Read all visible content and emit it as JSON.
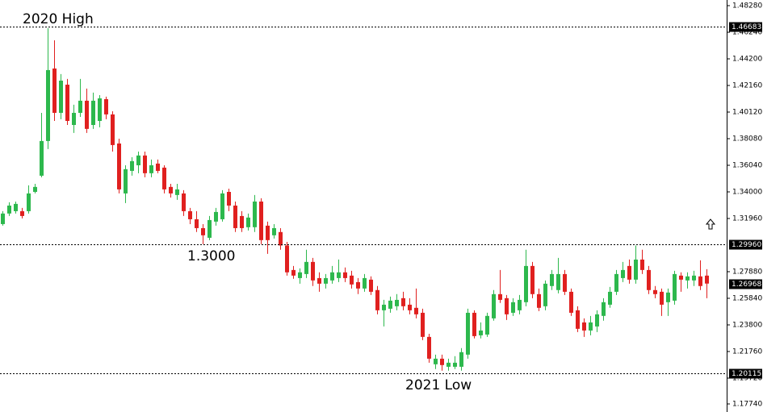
{
  "chart_data": {
    "type": "candlestick",
    "up_color": "#2db84d",
    "down_color": "#e0201f",
    "ylim": [
      1.1774,
      1.4828
    ],
    "yticks": [
      {
        "value": 1.4828,
        "label": "1.48280"
      },
      {
        "value": 1.4624,
        "label": "1.46240"
      },
      {
        "value": 1.442,
        "label": "1.44200"
      },
      {
        "value": 1.4216,
        "label": "1.42160"
      },
      {
        "value": 1.4012,
        "label": "1.40120"
      },
      {
        "value": 1.3808,
        "label": "1.38080"
      },
      {
        "value": 1.3604,
        "label": "1.36040"
      },
      {
        "value": 1.34,
        "label": "1.34000"
      },
      {
        "value": 1.3196,
        "label": "1.31960"
      },
      {
        "value": 1.2788,
        "label": "1.27880"
      },
      {
        "value": 1.2584,
        "label": "1.25840"
      },
      {
        "value": 1.238,
        "label": "1.23800"
      },
      {
        "value": 1.2176,
        "label": "1.21760"
      },
      {
        "value": 1.1972,
        "label": "1.19720"
      },
      {
        "value": 1.1774,
        "label": "1.17740"
      }
    ],
    "levels": [
      {
        "value": 1.46683,
        "label": "1.46683",
        "dashed": true
      },
      {
        "value": 1.2996,
        "label": "1.29960",
        "dashed": true
      },
      {
        "value": 1.26968,
        "label": "1.26968",
        "dashed": false
      },
      {
        "value": 1.20115,
        "label": "1.20115",
        "dashed": true
      }
    ],
    "annotations": [
      "2020 High",
      "1.3000",
      "2021 Low"
    ],
    "open": [
      1.3153,
      1.3234,
      1.3252,
      1.3252,
      1.3252,
      1.34,
      1.3524,
      1.379,
      1.4346,
      1.4006,
      1.4222,
      1.3913,
      1.4006,
      1.4099,
      1.3913,
      1.3944,
      1.4111,
      1.3994,
      1.3771,
      1.3388,
      1.3561,
      1.3604,
      1.3679,
      1.3543,
      1.3617,
      1.3586,
      1.3438,
      1.3376,
      1.3388,
      1.3252,
      1.319,
      1.3122,
      1.3048,
      1.3172,
      1.319,
      1.34,
      1.3295,
      1.3215,
      1.3129,
      1.3129,
      1.3326,
      1.3141,
      1.3067,
      1.3092,
      1.2989,
      1.2801,
      1.2739,
      1.277,
      1.2863,
      1.2739,
      1.2696,
      1.2721,
      1.2739,
      1.2783,
      1.2758,
      1.2708,
      1.2659,
      1.2727,
      1.2647,
      1.2492,
      1.2504,
      1.2523,
      1.2585,
      1.2535,
      1.2511,
      1.2473,
      1.2288,
      1.2078,
      1.2121,
      1.2059,
      1.2059,
      1.2059,
      1.2152,
      1.2473,
      1.23,
      1.2306,
      1.243,
      1.2616,
      1.2585,
      1.2473,
      1.2492,
      1.2554,
      1.2832,
      1.2616,
      1.2523,
      1.2678,
      1.2647,
      1.277,
      1.2634,
      1.2492,
      1.2399,
      1.2337,
      1.2368,
      1.2449,
      1.2535,
      1.2634,
      1.2739,
      1.2832,
      1.2727,
      1.2881,
      1.2801,
      1.2647,
      1.2634,
      1.2554,
      1.2566,
      1.2758,
      1.2721,
      1.2721,
      1.2752,
      1.2758
    ],
    "high": [
      1.3252,
      1.332,
      1.3326,
      1.3277,
      1.345,
      1.3462,
      1.4006,
      1.4655,
      1.4562,
      1.4303,
      1.4266,
      1.4068,
      1.4266,
      1.4192,
      1.4161,
      1.4142,
      1.413,
      1.4018,
      1.3808,
      1.3604,
      1.3666,
      1.3709,
      1.3709,
      1.3648,
      1.3648,
      1.3604,
      1.3462,
      1.3462,
      1.3413,
      1.3277,
      1.3252,
      1.3153,
      1.3215,
      1.3277,
      1.3413,
      1.3425,
      1.3326,
      1.3252,
      1.3234,
      1.3376,
      1.3351,
      1.3172,
      1.3153,
      1.3122,
      1.3017,
      1.2832,
      1.2813,
      1.2956,
      1.2894,
      1.2783,
      1.277,
      1.2832,
      1.2881,
      1.282,
      1.2795,
      1.2739,
      1.277,
      1.2752,
      1.2678,
      1.2572,
      1.2597,
      1.2616,
      1.2634,
      1.2585,
      1.2659,
      1.2504,
      1.2312,
      1.2152,
      1.2152,
      1.2121,
      1.214,
      1.2202,
      1.2504,
      1.2492,
      1.2399,
      1.2473,
      1.2647,
      1.2801,
      1.2609,
      1.2585,
      1.2609,
      1.2956,
      1.2863,
      1.2659,
      1.2721,
      1.2801,
      1.2894,
      1.2801,
      1.2659,
      1.2523,
      1.243,
      1.2449,
      1.2492,
      1.2585,
      1.2671,
      1.2801,
      1.2863,
      1.2881,
      1.2989,
      1.2956,
      1.2832,
      1.2678,
      1.2659,
      1.2659,
      1.2795,
      1.2783,
      1.2783,
      1.2795,
      1.2875,
      1.2807
    ],
    "low": [
      1.3141,
      1.3215,
      1.3234,
      1.3197,
      1.3234,
      1.3388,
      1.3512,
      1.3728,
      1.3944,
      1.3957,
      1.3913,
      1.3852,
      1.3975,
      1.3852,
      1.3883,
      1.3895,
      1.3957,
      1.3709,
      1.3388,
      1.3314,
      1.3524,
      1.3543,
      1.3512,
      1.3512,
      1.3543,
      1.3388,
      1.3357,
      1.3339,
      1.3215,
      1.3153,
      1.3092,
      1.2999,
      1.303,
      1.3141,
      1.3172,
      1.3252,
      1.3092,
      1.3092,
      1.3104,
      1.3092,
      1.2999,
      1.2925,
      1.3042,
      1.2956,
      1.2758,
      1.2734,
      1.2696,
      1.2739,
      1.2678,
      1.2634,
      1.2659,
      1.2696,
      1.2708,
      1.2708,
      1.2659,
      1.2616,
      1.2634,
      1.2609,
      1.2461,
      1.2368,
      1.2473,
      1.2492,
      1.2492,
      1.2461,
      1.243,
      1.2263,
      1.209,
      1.2041,
      1.2029,
      1.2029,
      1.2041,
      1.2029,
      1.2121,
      1.2276,
      1.2276,
      1.2288,
      1.2412,
      1.2548,
      1.2418,
      1.2449,
      1.2461,
      1.2523,
      1.2585,
      1.2486,
      1.2492,
      1.2647,
      1.2622,
      1.2609,
      1.2449,
      1.2325,
      1.2288,
      1.23,
      1.2325,
      1.2412,
      1.2511,
      1.2609,
      1.2708,
      1.2696,
      1.2696,
      1.277,
      1.2616,
      1.2585,
      1.2449,
      1.2449,
      1.2535,
      1.2634,
      1.2659,
      1.2678,
      1.2647,
      1.2585
    ],
    "close": [
      1.3234,
      1.3295,
      1.3308,
      1.3215,
      1.3388,
      1.3438,
      1.379,
      1.4334,
      1.4006,
      1.4253,
      1.3944,
      1.4006,
      1.4099,
      1.3883,
      1.4099,
      1.4117,
      1.3994,
      1.3759,
      1.3419,
      1.3574,
      1.3636,
      1.3679,
      1.3543,
      1.3604,
      1.3561,
      1.3419,
      1.3388,
      1.3419,
      1.3252,
      1.319,
      1.3122,
      1.3067,
      1.3184,
      1.3246,
      1.3388,
      1.3295,
      1.3122,
      1.3122,
      1.3203,
      1.3326,
      1.303,
      1.303,
      1.3122,
      1.2989,
      1.2783,
      1.2758,
      1.2783,
      1.2863,
      1.2721,
      1.2696,
      1.2739,
      1.2783,
      1.2783,
      1.2739,
      1.269,
      1.2659,
      1.2739,
      1.2634,
      1.2492,
      1.2535,
      1.2566,
      1.2572,
      1.2523,
      1.2492,
      1.2461,
      1.2288,
      1.2121,
      1.2121,
      1.2072,
      1.209,
      1.209,
      1.2171,
      1.2473,
      1.2294,
      1.2337,
      1.2449,
      1.2616,
      1.2572,
      1.2461,
      1.2554,
      1.2572,
      1.2832,
      1.2616,
      1.2511,
      1.2696,
      1.277,
      1.277,
      1.2634,
      1.2473,
      1.235,
      1.2337,
      1.2399,
      1.2461,
      1.2554,
      1.2634,
      1.277,
      1.2801,
      1.2727,
      1.2881,
      1.2801,
      1.2647,
      1.2616,
      1.2535,
      1.2628,
      1.277,
      1.2727,
      1.2752,
      1.2758,
      1.2678,
      1.26968
    ]
  }
}
